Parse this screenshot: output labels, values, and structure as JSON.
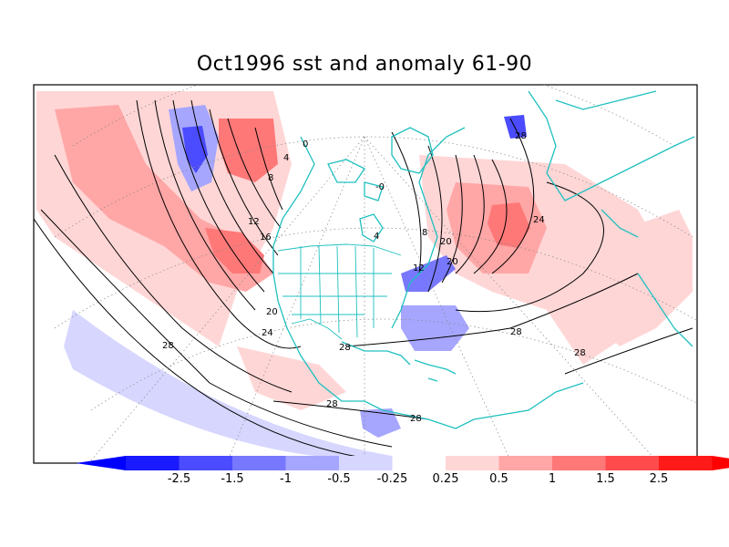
{
  "title": "Oct1996 sst and anomaly 61-90",
  "map": {
    "projection": "Lambert conformal (North America / North Atlantic / North Pacific)",
    "coastline_color": "#20c0c0",
    "contour_color": "#000000",
    "graticule": "dotted"
  },
  "contour_labels": [
    "28",
    "24",
    "20",
    "16",
    "12",
    "8",
    "4",
    "0",
    "-0",
    "20",
    "28",
    "28",
    "28",
    "28",
    "20",
    "8",
    "4",
    "12",
    "24",
    "28",
    "28"
  ],
  "colorbar": {
    "labels": [
      "-2.5",
      "-1.5",
      "-1",
      "-0.5",
      "-0.25",
      "0.25",
      "0.5",
      "1",
      "1.5",
      "2.5"
    ],
    "colors": [
      "#1a1aff",
      "#4b4bff",
      "#7878ff",
      "#a6a6ff",
      "#d6d6ff",
      "#ffffff",
      "#ffd6d6",
      "#ffa6a6",
      "#ff7878",
      "#ff4b4b",
      "#ff1a1a"
    ],
    "under_color": "#0000ff",
    "over_color": "#ff0000"
  }
}
